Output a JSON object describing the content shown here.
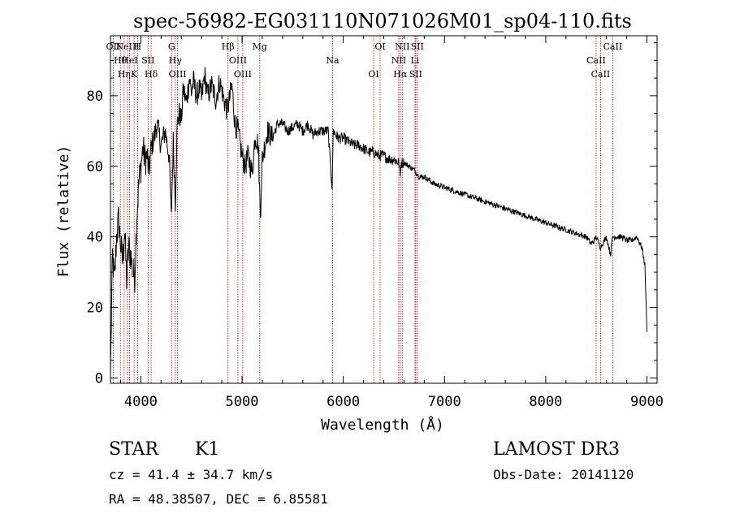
{
  "chart_data": {
    "type": "line",
    "title": "spec-56982-EG031110N071026M01_sp04-110.fits",
    "xlabel": "Wavelength (Å)",
    "ylabel": "Flux (relative)",
    "xlim": [
      3700,
      9100
    ],
    "ylim": [
      -1.5,
      97
    ],
    "x_ticks": [
      4000,
      5000,
      6000,
      7000,
      8000,
      9000
    ],
    "y_ticks": [
      0,
      20,
      40,
      60,
      80
    ],
    "grid": false,
    "series": [
      {
        "name": "spectrum",
        "x": [
          3700,
          3720,
          3740,
          3760,
          3780,
          3800,
          3820,
          3840,
          3860,
          3880,
          3900,
          3920,
          3940,
          3960,
          3980,
          4000,
          4020,
          4040,
          4060,
          4080,
          4100,
          4130,
          4160,
          4200,
          4240,
          4280,
          4300,
          4320,
          4340,
          4360,
          4380,
          4400,
          4420,
          4450,
          4480,
          4500,
          4520,
          4550,
          4580,
          4600,
          4630,
          4660,
          4700,
          4740,
          4780,
          4820,
          4850,
          4870,
          4900,
          4930,
          4960,
          5000,
          5030,
          5060,
          5100,
          5130,
          5160,
          5180,
          5200,
          5250,
          5300,
          5350,
          5400,
          5450,
          5500,
          5550,
          5600,
          5650,
          5700,
          5750,
          5800,
          5850,
          5890,
          5900,
          5950,
          6000,
          6050,
          6100,
          6150,
          6200,
          6250,
          6300,
          6350,
          6400,
          6450,
          6500,
          6550,
          6563,
          6570,
          6600,
          6650,
          6700,
          6750,
          6800,
          6850,
          6900,
          7000,
          7100,
          7200,
          7300,
          7400,
          7500,
          7600,
          7700,
          7800,
          7900,
          8000,
          8100,
          8200,
          8300,
          8400,
          8450,
          8480,
          8500,
          8540,
          8560,
          8600,
          8640,
          8660,
          8700,
          8750,
          8800,
          8850,
          8900,
          8950,
          8980,
          9000
        ],
        "values": [
          1,
          35,
          27,
          40,
          45,
          38,
          33,
          42,
          28,
          37,
          35,
          30,
          29,
          46,
          55,
          60,
          65,
          62,
          63,
          58,
          65,
          68,
          72,
          66,
          70,
          63,
          45,
          67,
          50,
          72,
          75,
          73,
          82,
          78,
          85,
          81,
          84,
          80,
          82,
          79,
          86,
          80,
          83,
          79,
          84,
          79,
          76,
          78,
          83,
          72,
          70,
          63,
          60,
          63,
          58,
          69,
          66,
          46,
          62,
          70,
          68,
          72,
          72,
          70,
          71,
          72,
          70,
          72,
          69,
          70,
          70,
          70,
          54,
          70,
          68,
          68,
          67,
          66,
          66,
          65,
          64,
          64,
          63,
          63,
          62,
          62,
          61,
          57,
          61,
          61,
          60,
          59,
          57,
          57,
          56,
          55,
          54,
          53,
          52,
          51,
          50,
          49,
          48,
          47,
          46,
          45,
          44,
          43,
          42,
          41,
          40,
          38,
          39,
          40,
          37,
          38,
          40,
          35,
          40,
          40,
          40,
          39,
          39,
          40,
          37,
          32,
          13
        ]
      }
    ],
    "line_annotations": [
      {
        "wavelength": 3727,
        "label": "OII"
      },
      {
        "wavelength": 3798,
        "label": "Hθ"
      },
      {
        "wavelength": 3835,
        "label": "Hη"
      },
      {
        "wavelength": 3869,
        "label": "NeIII"
      },
      {
        "wavelength": 3889,
        "label": "HeI"
      },
      {
        "wavelength": 3934,
        "label": "K"
      },
      {
        "wavelength": 3968,
        "label": "H"
      },
      {
        "wavelength": 4072,
        "label": "SII"
      },
      {
        "wavelength": 4102,
        "label": "Hδ"
      },
      {
        "wavelength": 4304,
        "label": "G"
      },
      {
        "wavelength": 4340,
        "label": "Hγ"
      },
      {
        "wavelength": 4363,
        "label": "OIII"
      },
      {
        "wavelength": 4861,
        "label": "Hβ"
      },
      {
        "wavelength": 4959,
        "label": "OIII"
      },
      {
        "wavelength": 5007,
        "label": "OIII"
      },
      {
        "wavelength": 5175,
        "label": "Mg"
      },
      {
        "wavelength": 5894,
        "label": "Na"
      },
      {
        "wavelength": 6300,
        "label": "OI"
      },
      {
        "wavelength": 6364,
        "label": "OI"
      },
      {
        "wavelength": 6548,
        "label": "NII"
      },
      {
        "wavelength": 6563,
        "label": "Hα"
      },
      {
        "wavelength": 6583,
        "label": "NII"
      },
      {
        "wavelength": 6708,
        "label": "Li"
      },
      {
        "wavelength": 6716,
        "label": "SII"
      },
      {
        "wavelength": 6731,
        "label": "SII"
      },
      {
        "wavelength": 8498,
        "label": "CaII"
      },
      {
        "wavelength": 8542,
        "label": "CaII"
      },
      {
        "wavelength": 8662,
        "label": "CaII"
      }
    ]
  },
  "footer": {
    "object_class": "STAR",
    "subclass": "K1",
    "survey": "LAMOST DR3",
    "cz": "cz = 41.4 ± 34.7 km/s",
    "obs_date": "Obs-Date: 20141120",
    "coords": "RA =  48.38507, DEC =   6.85581"
  },
  "colors": {
    "spectrum": "#000000",
    "annotation_line": "#cc0000",
    "text": "#000000"
  }
}
